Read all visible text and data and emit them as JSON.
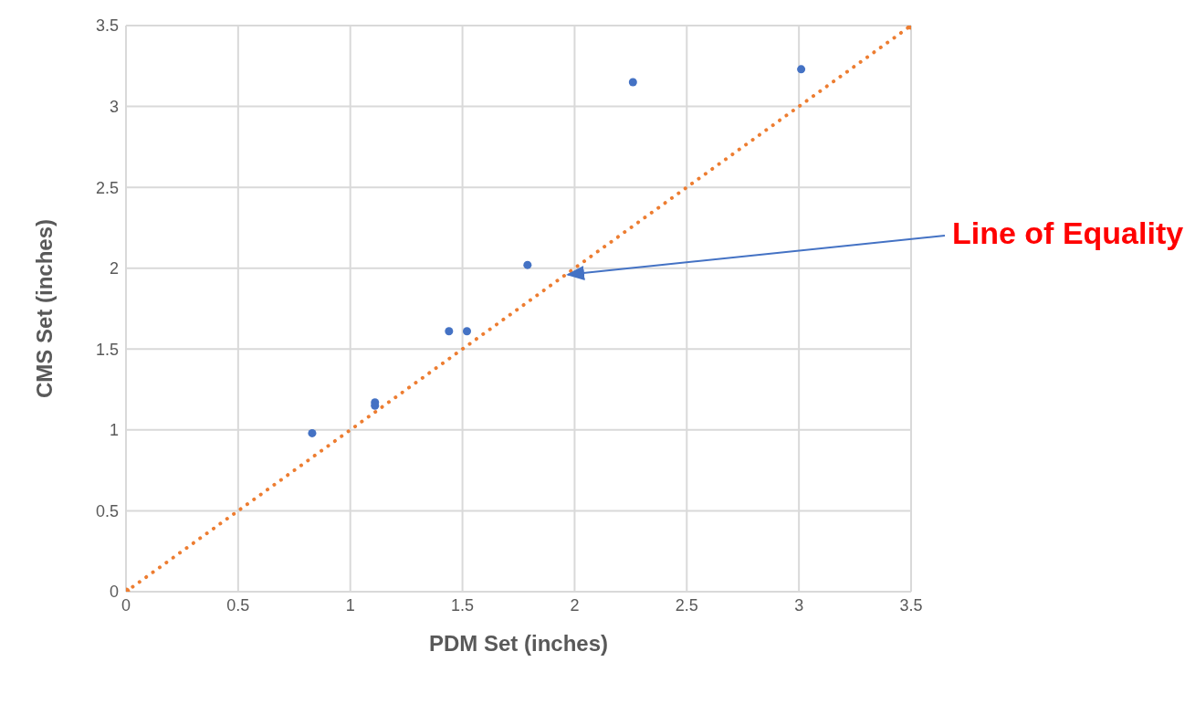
{
  "chart_data": {
    "type": "scatter",
    "xlabel": "PDM Set (inches)",
    "ylabel": "CMS Set (inches)",
    "xlim": [
      0,
      3.5
    ],
    "xticks": [
      0,
      0.5,
      1,
      1.5,
      2,
      2.5,
      3,
      3.5
    ],
    "ylim": [
      0,
      3.5
    ],
    "yticks": [
      0,
      0.5,
      1,
      1.5,
      2,
      2.5,
      3,
      3.5
    ],
    "grid": true,
    "series": [
      {
        "color": "#4472c4",
        "x": [
          0.83,
          1.11,
          1.11,
          1.44,
          1.52,
          1.79,
          2.26,
          3.01
        ],
        "values": [
          0.98,
          1.17,
          1.15,
          1.61,
          1.61,
          2.02,
          3.15,
          3.23
        ],
        "marker": "circle"
      },
      {
        "type": "line",
        "color": "#ed7d31",
        "x": [
          0,
          3.5
        ],
        "values": [
          0,
          3.5
        ],
        "marker": "circle",
        "line_style": "dotted"
      }
    ],
    "annotations": [
      {
        "text": "Line of Equality",
        "x": 1.97,
        "y": 1.96
      }
    ]
  }
}
